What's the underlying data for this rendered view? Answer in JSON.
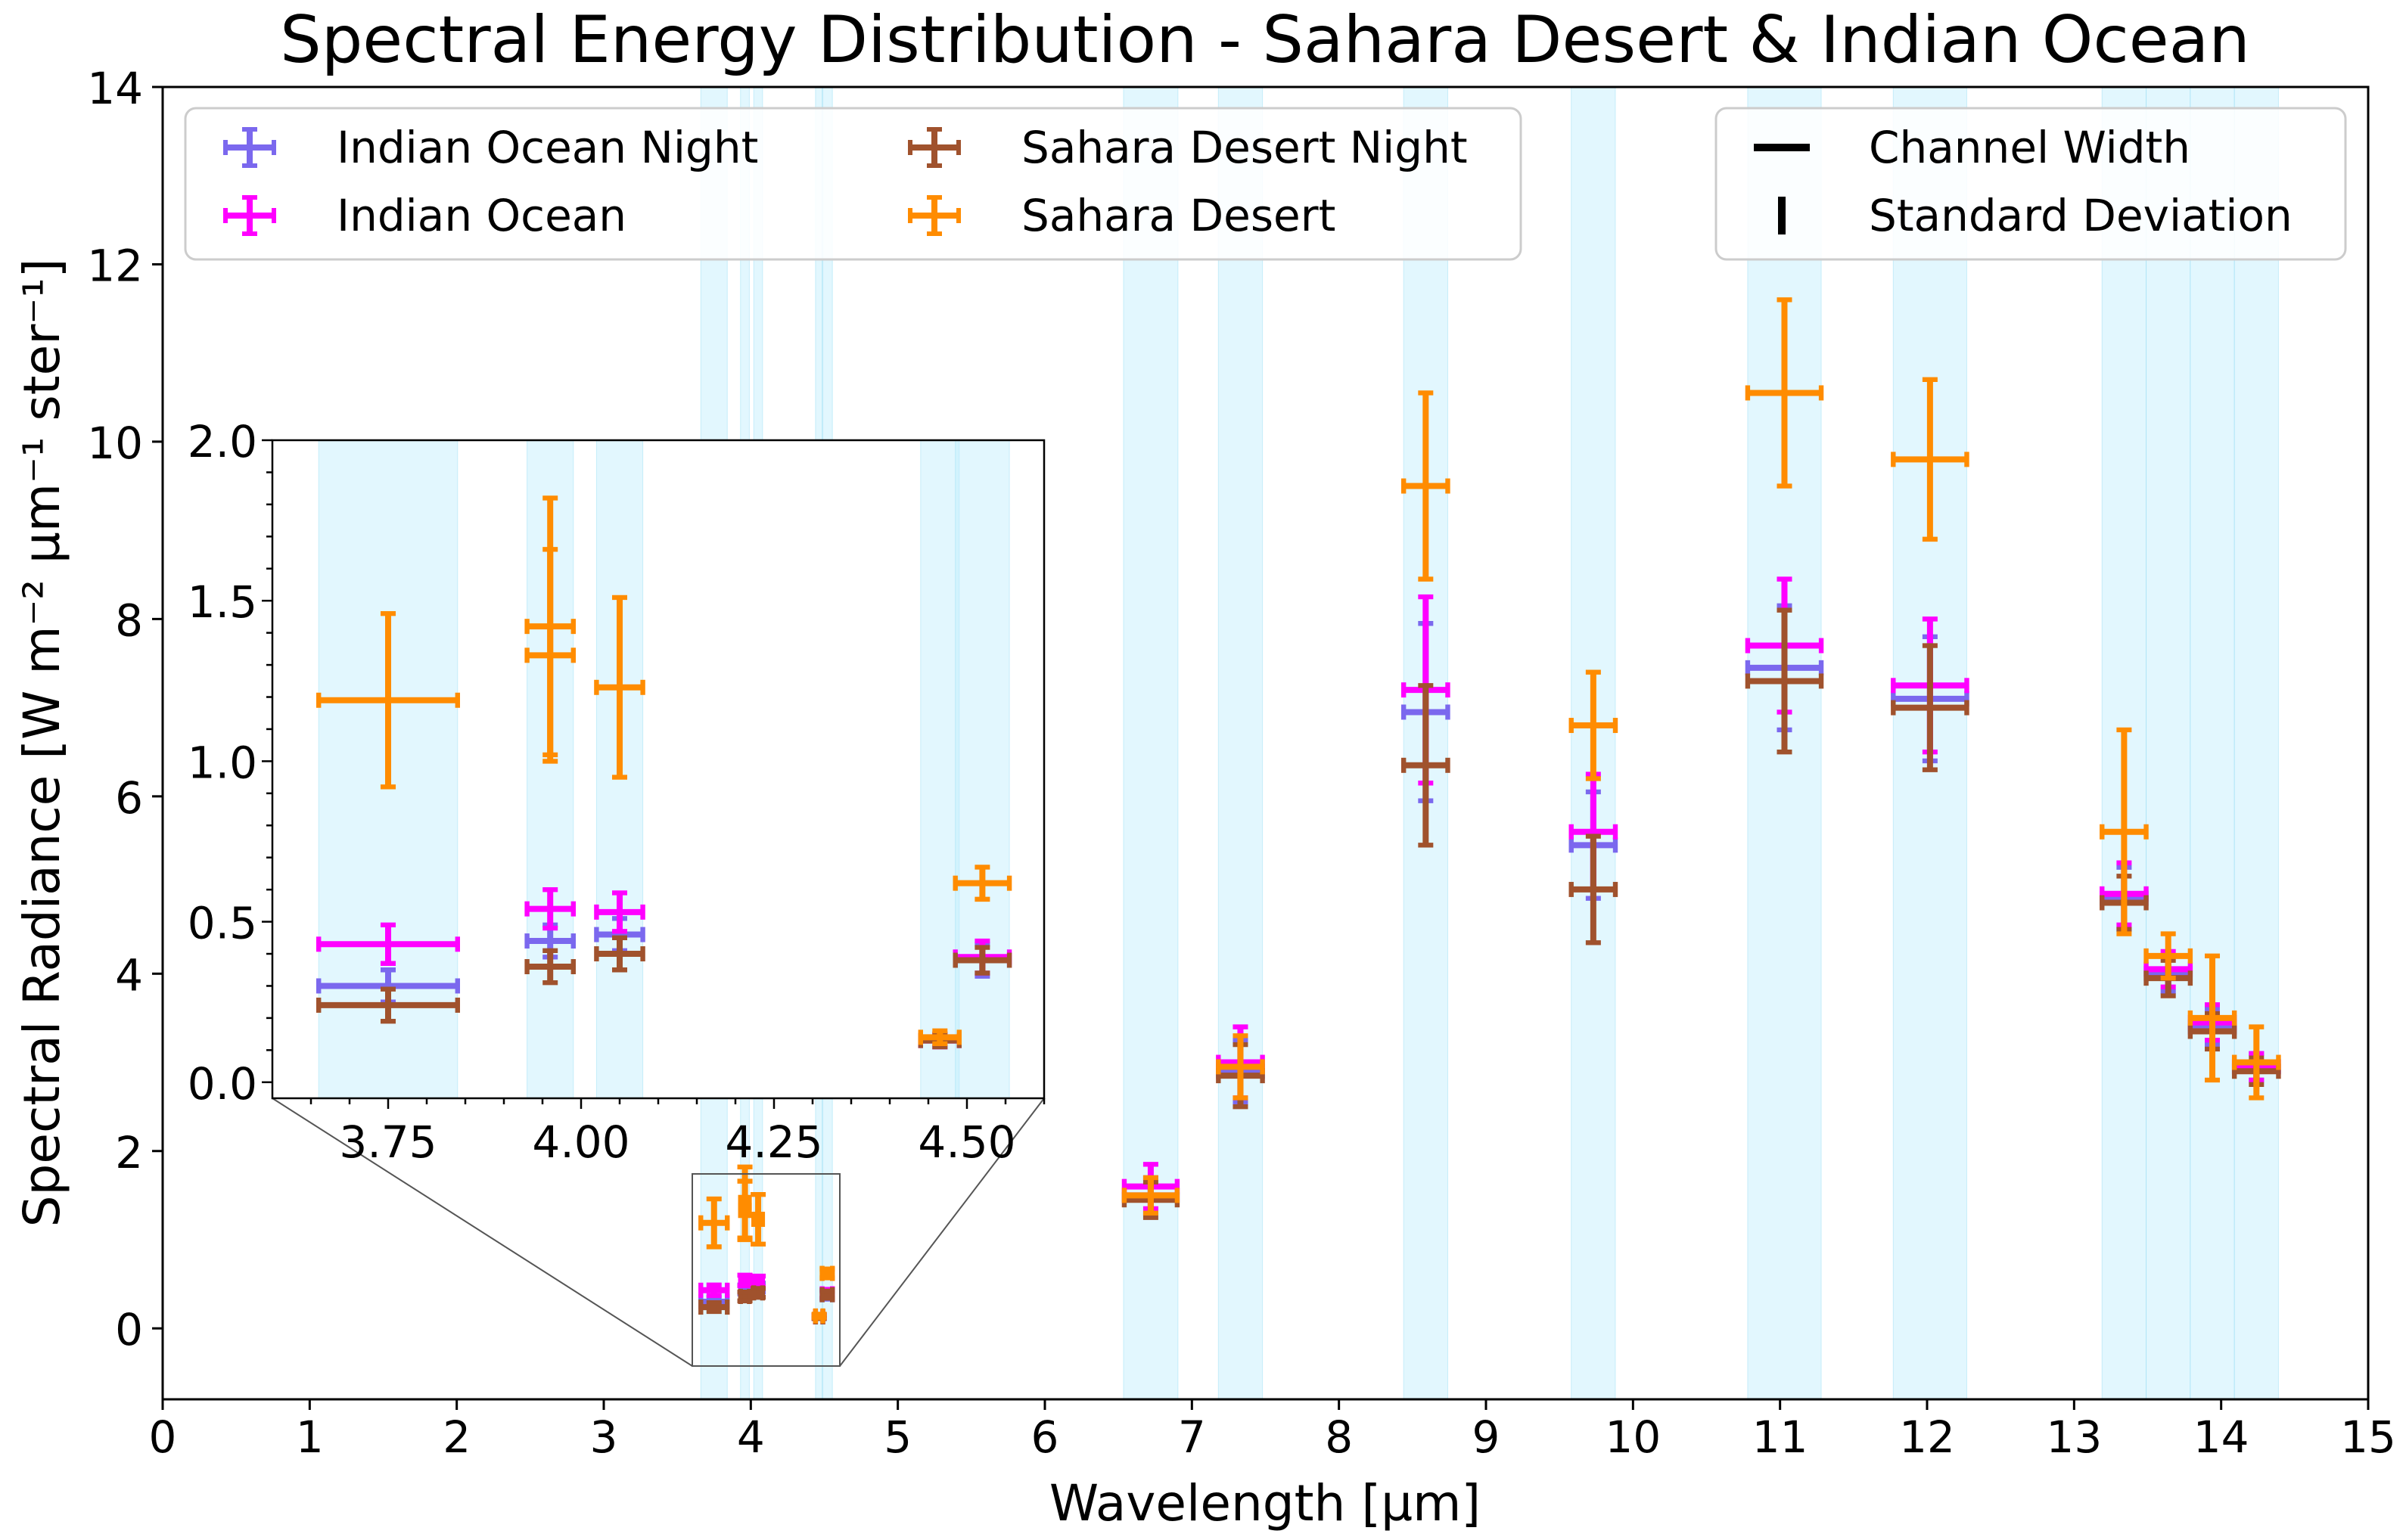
{
  "chart_data": {
    "type": "scatter",
    "title": "Spectral Energy Distribution - Sahara Desert & Indian Ocean",
    "xlabel": "Wavelength [µm]",
    "ylabel": "Spectral Radiance  [W m⁻² µm⁻¹ ster⁻¹]",
    "xlim": [
      0,
      15
    ],
    "ylim": [
      -0.8,
      14
    ],
    "xticks": [
      "0",
      "1",
      "2",
      "3",
      "4",
      "5",
      "6",
      "7",
      "8",
      "9",
      "10",
      "11",
      "12",
      "13",
      "14",
      "15"
    ],
    "yticks": [
      "0",
      "2",
      "4",
      "6",
      "8",
      "10",
      "12",
      "14"
    ],
    "grid": false,
    "channels": [
      {
        "center": 3.75,
        "width": 0.18
      },
      {
        "center": 3.96,
        "width": 0.06
      },
      {
        "center": 4.05,
        "width": 0.06
      },
      {
        "center": 4.465,
        "width": 0.05
      },
      {
        "center": 4.52,
        "width": 0.07
      },
      {
        "center": 6.72,
        "width": 0.37
      },
      {
        "center": 7.33,
        "width": 0.3
      },
      {
        "center": 8.59,
        "width": 0.3
      },
      {
        "center": 9.73,
        "width": 0.3
      },
      {
        "center": 11.03,
        "width": 0.5
      },
      {
        "center": 12.02,
        "width": 0.5
      },
      {
        "center": 13.34,
        "width": 0.3
      },
      {
        "center": 13.64,
        "width": 0.3
      },
      {
        "center": 13.94,
        "width": 0.3
      },
      {
        "center": 14.24,
        "width": 0.3
      }
    ],
    "series": [
      {
        "name": "Indian Ocean Night",
        "color": "#7b68ee",
        "points": [
          {
            "x": 3.75,
            "y": 0.3,
            "xerr": 0.09,
            "yerr": 0.05
          },
          {
            "x": 3.96,
            "y": 0.44,
            "xerr": 0.03,
            "yerr": 0.05
          },
          {
            "x": 4.05,
            "y": 0.46,
            "xerr": 0.03,
            "yerr": 0.05
          },
          {
            "x": 4.465,
            "y": 0.13,
            "xerr": 0.025,
            "yerr": 0.02
          },
          {
            "x": 4.52,
            "y": 0.38,
            "xerr": 0.035,
            "yerr": 0.05
          },
          {
            "x": 6.72,
            "y": 1.5,
            "xerr": 0.18,
            "yerr": 0.2
          },
          {
            "x": 7.33,
            "y": 2.9,
            "xerr": 0.15,
            "yerr": 0.35
          },
          {
            "x": 8.59,
            "y": 6.95,
            "xerr": 0.15,
            "yerr": 1.0
          },
          {
            "x": 9.73,
            "y": 5.45,
            "xerr": 0.15,
            "yerr": 0.6
          },
          {
            "x": 11.03,
            "y": 7.45,
            "xerr": 0.25,
            "yerr": 0.7
          },
          {
            "x": 12.02,
            "y": 7.1,
            "xerr": 0.25,
            "yerr": 0.7
          },
          {
            "x": 13.34,
            "y": 4.85,
            "xerr": 0.15,
            "yerr": 0.35
          },
          {
            "x": 13.64,
            "y": 4.0,
            "xerr": 0.15,
            "yerr": 0.2
          },
          {
            "x": 13.94,
            "y": 3.4,
            "xerr": 0.15,
            "yerr": 0.2
          },
          {
            "x": 14.24,
            "y": 2.95,
            "xerr": 0.15,
            "yerr": 0.15
          }
        ]
      },
      {
        "name": "Indian Ocean",
        "color": "#ff00ff",
        "points": [
          {
            "x": 3.75,
            "y": 0.43,
            "xerr": 0.09,
            "yerr": 0.06
          },
          {
            "x": 3.96,
            "y": 0.54,
            "xerr": 0.03,
            "yerr": 0.06
          },
          {
            "x": 4.05,
            "y": 0.53,
            "xerr": 0.03,
            "yerr": 0.06
          },
          {
            "x": 4.465,
            "y": 0.13,
            "xerr": 0.025,
            "yerr": 0.02
          },
          {
            "x": 4.52,
            "y": 0.39,
            "xerr": 0.035,
            "yerr": 0.05
          },
          {
            "x": 6.72,
            "y": 1.6,
            "xerr": 0.18,
            "yerr": 0.25
          },
          {
            "x": 7.33,
            "y": 3.0,
            "xerr": 0.15,
            "yerr": 0.4
          },
          {
            "x": 8.59,
            "y": 7.2,
            "xerr": 0.15,
            "yerr": 1.05
          },
          {
            "x": 9.73,
            "y": 5.6,
            "xerr": 0.15,
            "yerr": 0.65
          },
          {
            "x": 11.03,
            "y": 7.7,
            "xerr": 0.25,
            "yerr": 0.75
          },
          {
            "x": 12.02,
            "y": 7.25,
            "xerr": 0.25,
            "yerr": 0.75
          },
          {
            "x": 13.34,
            "y": 4.9,
            "xerr": 0.15,
            "yerr": 0.35
          },
          {
            "x": 13.64,
            "y": 4.05,
            "xerr": 0.15,
            "yerr": 0.2
          },
          {
            "x": 13.94,
            "y": 3.45,
            "xerr": 0.15,
            "yerr": 0.2
          },
          {
            "x": 14.24,
            "y": 2.95,
            "xerr": 0.15,
            "yerr": 0.15
          }
        ]
      },
      {
        "name": "Sahara Desert Night",
        "color": "#a0522d",
        "points": [
          {
            "x": 3.75,
            "y": 0.24,
            "xerr": 0.09,
            "yerr": 0.05
          },
          {
            "x": 3.96,
            "y": 0.36,
            "xerr": 0.03,
            "yerr": 0.05
          },
          {
            "x": 4.05,
            "y": 0.4,
            "xerr": 0.03,
            "yerr": 0.05
          },
          {
            "x": 4.465,
            "y": 0.13,
            "xerr": 0.025,
            "yerr": 0.02
          },
          {
            "x": 4.52,
            "y": 0.38,
            "xerr": 0.035,
            "yerr": 0.04
          },
          {
            "x": 6.72,
            "y": 1.45,
            "xerr": 0.18,
            "yerr": 0.2
          },
          {
            "x": 7.33,
            "y": 2.85,
            "xerr": 0.15,
            "yerr": 0.35
          },
          {
            "x": 8.59,
            "y": 6.35,
            "xerr": 0.15,
            "yerr": 0.9
          },
          {
            "x": 9.73,
            "y": 4.95,
            "xerr": 0.15,
            "yerr": 0.6
          },
          {
            "x": 11.03,
            "y": 7.3,
            "xerr": 0.25,
            "yerr": 0.8
          },
          {
            "x": 12.02,
            "y": 7.0,
            "xerr": 0.25,
            "yerr": 0.7
          },
          {
            "x": 13.34,
            "y": 4.8,
            "xerr": 0.15,
            "yerr": 0.3
          },
          {
            "x": 13.64,
            "y": 3.95,
            "xerr": 0.15,
            "yerr": 0.2
          },
          {
            "x": 13.94,
            "y": 3.35,
            "xerr": 0.15,
            "yerr": 0.2
          },
          {
            "x": 14.24,
            "y": 2.9,
            "xerr": 0.15,
            "yerr": 0.15
          }
        ]
      },
      {
        "name": "Sahara Desert",
        "color": "#ff8c00",
        "points": [
          {
            "x": 3.75,
            "y": 1.19,
            "xerr": 0.09,
            "yerr": 0.27
          },
          {
            "x": 3.96,
            "y": 1.42,
            "xerr": 0.03,
            "yerr": 0.4
          },
          {
            "x": 3.96,
            "y": 1.33,
            "xerr": 0.03,
            "yerr": 0.33
          },
          {
            "x": 4.05,
            "y": 1.23,
            "xerr": 0.03,
            "yerr": 0.28
          },
          {
            "x": 4.465,
            "y": 0.14,
            "xerr": 0.025,
            "yerr": 0.02
          },
          {
            "x": 4.52,
            "y": 0.62,
            "xerr": 0.035,
            "yerr": 0.05
          },
          {
            "x": 6.72,
            "y": 1.5,
            "xerr": 0.18,
            "yerr": 0.2
          },
          {
            "x": 7.33,
            "y": 2.95,
            "xerr": 0.15,
            "yerr": 0.35
          },
          {
            "x": 8.59,
            "y": 9.5,
            "xerr": 0.15,
            "yerr": 1.05
          },
          {
            "x": 9.73,
            "y": 6.8,
            "xerr": 0.15,
            "yerr": 0.6
          },
          {
            "x": 11.03,
            "y": 10.55,
            "xerr": 0.25,
            "yerr": 1.05
          },
          {
            "x": 12.02,
            "y": 9.8,
            "xerr": 0.25,
            "yerr": 0.9
          },
          {
            "x": 13.34,
            "y": 5.6,
            "xerr": 0.15,
            "yerr": 1.15
          },
          {
            "x": 13.64,
            "y": 4.2,
            "xerr": 0.15,
            "yerr": 0.25
          },
          {
            "x": 13.94,
            "y": 3.5,
            "xerr": 0.15,
            "yerr": 0.7
          },
          {
            "x": 14.24,
            "y": 3.0,
            "xerr": 0.15,
            "yerr": 0.4
          }
        ]
      }
    ],
    "inset": {
      "xlim": [
        3.6,
        4.6
      ],
      "ylim": [
        -0.05,
        2.0
      ],
      "xticks": [
        "3.75",
        "4.00",
        "4.25",
        "4.50"
      ],
      "yticks": [
        "0.0",
        "0.5",
        "1.0",
        "1.5",
        "2.0"
      ]
    },
    "legend_series": {
      "placement": "top-left",
      "entries": [
        "Indian Ocean Night",
        "Indian Ocean",
        "Sahara Desert Night",
        "Sahara Desert"
      ]
    },
    "legend_style": {
      "placement": "top-right",
      "entries": [
        "Channel Width",
        "Standard Deviation"
      ]
    }
  }
}
